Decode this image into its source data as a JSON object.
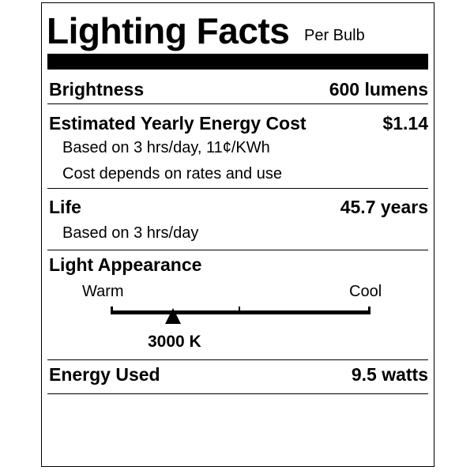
{
  "title": "Lighting Facts",
  "subtitle": "Per Bulb",
  "brightness": {
    "label": "Brightness",
    "value": "600 lumens"
  },
  "cost": {
    "label": "Estimated Yearly Energy Cost",
    "value": "$1.14",
    "note1": "Based on 3 hrs/day, 11¢/KWh",
    "note2": "Cost depends on rates and use"
  },
  "life": {
    "label": "Life",
    "value": "45.7 years",
    "note": "Based on 3 hrs/day"
  },
  "appearance": {
    "label": "Light Appearance",
    "warm": "Warm",
    "cool": "Cool",
    "value": "3000 K",
    "scale_position_fraction": 0.24
  },
  "energy": {
    "label": "Energy Used",
    "value": "9.5 watts"
  }
}
